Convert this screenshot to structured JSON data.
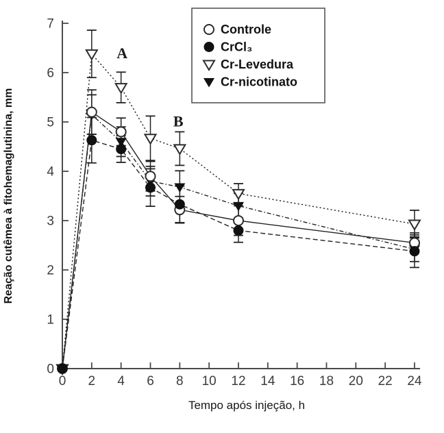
{
  "figure": {
    "background": "#ffffff",
    "ink_color": "#222222",
    "axis_color": "#4a4a4a",
    "tick_label_color": "#3c3c3c"
  },
  "chart_data": {
    "type": "line",
    "title": "",
    "xlabel": "Tempo após injeção, h",
    "ylabel": "Reação cutêmea à fitohemaglutinina, mm",
    "xlim": [
      0,
      24
    ],
    "ylim": [
      0,
      7
    ],
    "xticks": [
      0,
      2,
      4,
      6,
      8,
      10,
      12,
      14,
      16,
      18,
      20,
      22,
      24
    ],
    "yticks": [
      0,
      1,
      2,
      3,
      4,
      5,
      6,
      7
    ],
    "grid": false,
    "legend_position": "top-right-inside",
    "x": [
      0,
      2,
      4,
      6,
      8,
      12,
      24
    ],
    "series": [
      {
        "name": "Controle",
        "marker": "circle-open",
        "line": "solid",
        "y": [
          0,
          5.2,
          4.8,
          3.9,
          3.22,
          3.0,
          2.55
        ],
        "err": [
          0,
          0.45,
          0.28,
          0.3,
          0.27,
          0.3,
          0.2
        ]
      },
      {
        "name": "CrCl₃",
        "marker": "circle-filled",
        "line": "dashed",
        "y": [
          0,
          4.63,
          4.45,
          3.67,
          3.33,
          2.8,
          2.38
        ],
        "err": [
          0,
          0.46,
          0.27,
          0.38,
          0.37,
          0.24,
          0.33
        ]
      },
      {
        "name": "Cr-Levedura",
        "marker": "triangle-down-open",
        "line": "dotted",
        "y": [
          0,
          6.38,
          5.7,
          4.67,
          4.46,
          3.55,
          2.93
        ],
        "err": [
          0,
          0.48,
          0.31,
          0.45,
          0.34,
          0.2,
          0.28
        ]
      },
      {
        "name": "Cr-nicotinato",
        "marker": "triangle-down-filled",
        "line": "dashdot",
        "y": [
          0,
          5.15,
          4.6,
          3.8,
          3.68,
          3.3,
          2.42
        ],
        "err": [
          0,
          0.4,
          0.3,
          0.3,
          0.33,
          0.25,
          0.25
        ]
      }
    ],
    "annotations": [
      {
        "text": "A",
        "x": 4.07,
        "y": 6.4
      },
      {
        "text": "B",
        "x": 7.9,
        "y": 5.02
      }
    ]
  }
}
